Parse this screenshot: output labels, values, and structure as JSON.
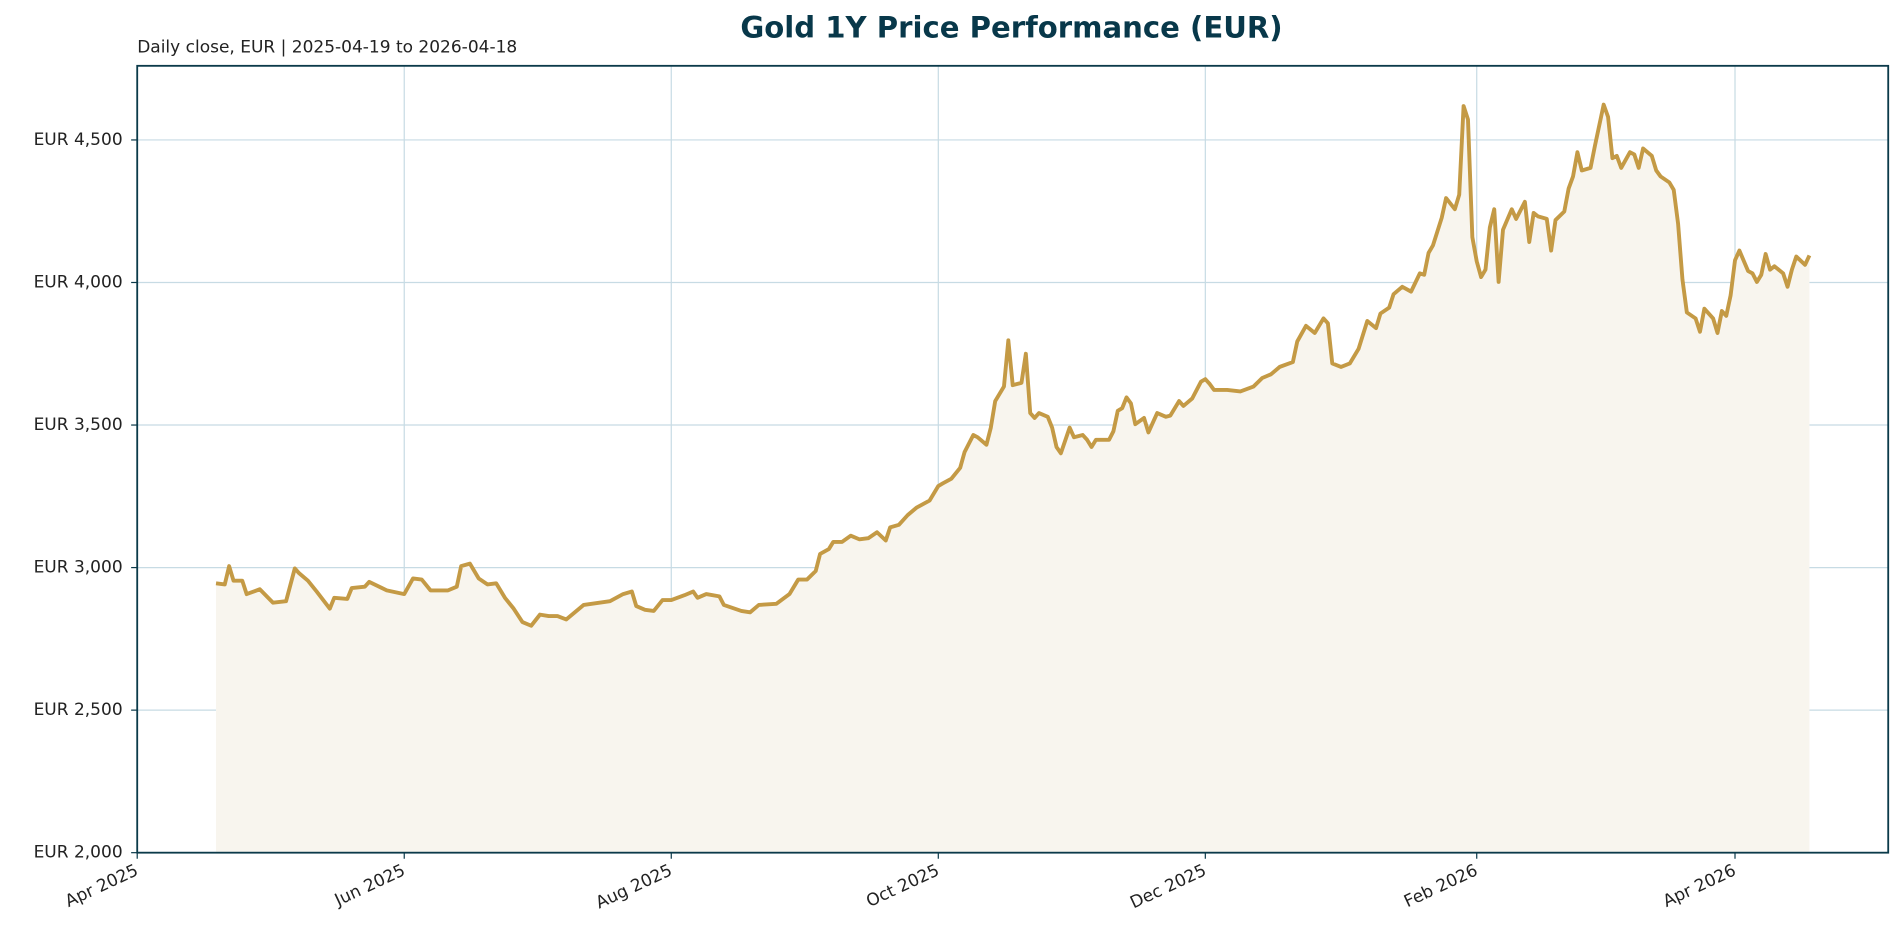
{
  "chart_data": {
    "type": "area-line",
    "title": "Gold 1Y Price Performance (EUR)",
    "subtitle": "Daily close, EUR | 2025-04-19 to 2026-04-18",
    "color": "#c49a45",
    "fill_color": "#f8f5ee",
    "grid": true,
    "xlim": [
      "2025-04-01",
      "2026-05-06"
    ],
    "xticks": [
      {
        "value": "2025-04-01",
        "label": "Apr 2025"
      },
      {
        "value": "2025-06-01",
        "label": "Jun 2025"
      },
      {
        "value": "2025-08-01",
        "label": "Aug 2025"
      },
      {
        "value": "2025-10-01",
        "label": "Oct 2025"
      },
      {
        "value": "2025-12-01",
        "label": "Dec 2025"
      },
      {
        "value": "2026-02-01",
        "label": "Feb 2026"
      },
      {
        "value": "2026-04-01",
        "label": "Apr 2026"
      }
    ],
    "ylim": [
      2000,
      4760
    ],
    "yticks": [
      {
        "value": 2000,
        "label": "EUR 2,000"
      },
      {
        "value": 2500,
        "label": "EUR 2,500"
      },
      {
        "value": 3000,
        "label": "EUR 3,000"
      },
      {
        "value": 3500,
        "label": "EUR 3,500"
      },
      {
        "value": 4000,
        "label": "EUR 4,000"
      },
      {
        "value": 4500,
        "label": "EUR 4,500"
      }
    ],
    "x": [
      "2025-04-19",
      "2025-04-21",
      "2025-04-22",
      "2025-04-23",
      "2025-04-25",
      "2025-04-26",
      "2025-04-29",
      "2025-05-02",
      "2025-05-05",
      "2025-05-07",
      "2025-05-08",
      "2025-05-10",
      "2025-05-12",
      "2025-05-15",
      "2025-05-16",
      "2025-05-19",
      "2025-05-20",
      "2025-05-23",
      "2025-05-24",
      "2025-05-28",
      "2025-06-01",
      "2025-06-03",
      "2025-06-05",
      "2025-06-07",
      "2025-06-11",
      "2025-06-13",
      "2025-06-14",
      "2025-06-16",
      "2025-06-18",
      "2025-06-20",
      "2025-06-22",
      "2025-06-24",
      "2025-06-26",
      "2025-06-28",
      "2025-06-30",
      "2025-07-02",
      "2025-07-04",
      "2025-07-06",
      "2025-07-08",
      "2025-07-12",
      "2025-07-18",
      "2025-07-21",
      "2025-07-23",
      "2025-07-24",
      "2025-07-26",
      "2025-07-28",
      "2025-07-30",
      "2025-08-01",
      "2025-08-04",
      "2025-08-06",
      "2025-08-07",
      "2025-08-09",
      "2025-08-12",
      "2025-08-13",
      "2025-08-17",
      "2025-08-19",
      "2025-08-21",
      "2025-08-25",
      "2025-08-28",
      "2025-08-30",
      "2025-09-01",
      "2025-09-03",
      "2025-09-04",
      "2025-09-06",
      "2025-09-07",
      "2025-09-09",
      "2025-09-11",
      "2025-09-13",
      "2025-09-15",
      "2025-09-17",
      "2025-09-19",
      "2025-09-20",
      "2025-09-22",
      "2025-09-24",
      "2025-09-26",
      "2025-09-29",
      "2025-10-01",
      "2025-10-02",
      "2025-10-04",
      "2025-10-06",
      "2025-10-07",
      "2025-10-09",
      "2025-10-10",
      "2025-10-12",
      "2025-10-13",
      "2025-10-14",
      "2025-10-16",
      "2025-10-17",
      "2025-10-18",
      "2025-10-20",
      "2025-10-21",
      "2025-10-22",
      "2025-10-23",
      "2025-10-24",
      "2025-10-26",
      "2025-10-27",
      "2025-10-28",
      "2025-10-29",
      "2025-10-31",
      "2025-11-01",
      "2025-11-03",
      "2025-11-04",
      "2025-11-05",
      "2025-11-06",
      "2025-11-09",
      "2025-11-10",
      "2025-11-11",
      "2025-11-12",
      "2025-11-13",
      "2025-11-14",
      "2025-11-15",
      "2025-11-17",
      "2025-11-18",
      "2025-11-20",
      "2025-11-22",
      "2025-11-23",
      "2025-11-25",
      "2025-11-26",
      "2025-11-28",
      "2025-11-30",
      "2025-12-01",
      "2025-12-02",
      "2025-12-03",
      "2025-12-06",
      "2025-12-09",
      "2025-12-12",
      "2025-12-14",
      "2025-12-16",
      "2025-12-18",
      "2025-12-21",
      "2025-12-22",
      "2025-12-24",
      "2025-12-26",
      "2025-12-28",
      "2025-12-29",
      "2025-12-30",
      "2026-01-01",
      "2026-01-03",
      "2026-01-05",
      "2026-01-07",
      "2026-01-09",
      "2026-01-10",
      "2026-01-12",
      "2026-01-13",
      "2026-01-15",
      "2026-01-17",
      "2026-01-19",
      "2026-01-20",
      "2026-01-21",
      "2026-01-22",
      "2026-01-24",
      "2026-01-25",
      "2026-01-27",
      "2026-01-28",
      "2026-01-29",
      "2026-01-30",
      "2026-01-31",
      "2026-02-01",
      "2026-02-02",
      "2026-02-03",
      "2026-02-04",
      "2026-02-05",
      "2026-02-06",
      "2026-02-07",
      "2026-02-09",
      "2026-02-10",
      "2026-02-12",
      "2026-02-13",
      "2026-02-14",
      "2026-02-15",
      "2026-02-17",
      "2026-02-18",
      "2026-02-19",
      "2026-02-21",
      "2026-02-22",
      "2026-02-23",
      "2026-02-24",
      "2026-02-25",
      "2026-02-27",
      "2026-02-28",
      "2026-03-02",
      "2026-03-03",
      "2026-03-04",
      "2026-03-05",
      "2026-03-06",
      "2026-03-08",
      "2026-03-09",
      "2026-03-10",
      "2026-03-11",
      "2026-03-13",
      "2026-03-14",
      "2026-03-15",
      "2026-03-17",
      "2026-03-18",
      "2026-03-19",
      "2026-03-20",
      "2026-03-21",
      "2026-03-23",
      "2026-03-24",
      "2026-03-25",
      "2026-03-27",
      "2026-03-28",
      "2026-03-29",
      "2026-03-30",
      "2026-03-31",
      "2026-04-01",
      "2026-04-02",
      "2026-04-04",
      "2026-04-05",
      "2026-04-06",
      "2026-04-07",
      "2026-04-08",
      "2026-04-09",
      "2026-04-10",
      "2026-04-12",
      "2026-04-13",
      "2026-04-14",
      "2026-04-15",
      "2026-04-17",
      "2026-04-18"
    ],
    "values": [
      2945,
      2941,
      3005,
      2954,
      2954,
      2907,
      2924,
      2877,
      2882,
      2997,
      2980,
      2954,
      2916,
      2856,
      2894,
      2890,
      2928,
      2933,
      2950,
      2920,
      2907,
      2962,
      2958,
      2920,
      2920,
      2933,
      3005,
      3014,
      2962,
      2941,
      2945,
      2894,
      2856,
      2809,
      2796,
      2835,
      2830,
      2830,
      2818,
      2869,
      2882,
      2907,
      2916,
      2865,
      2852,
      2848,
      2886,
      2886,
      2903,
      2916,
      2894,
      2907,
      2899,
      2869,
      2848,
      2843,
      2869,
      2873,
      2907,
      2958,
      2958,
      2988,
      3048,
      3065,
      3090,
      3090,
      3112,
      3099,
      3103,
      3124,
      3095,
      3141,
      3150,
      3184,
      3210,
      3235,
      3286,
      3295,
      3312,
      3350,
      3405,
      3465,
      3457,
      3431,
      3491,
      3584,
      3635,
      3797,
      3640,
      3648,
      3750,
      3542,
      3525,
      3542,
      3529,
      3491,
      3423,
      3401,
      3491,
      3457,
      3465,
      3448,
      3423,
      3448,
      3448,
      3478,
      3550,
      3559,
      3597,
      3576,
      3503,
      3525,
      3474,
      3542,
      3529,
      3533,
      3584,
      3567,
      3593,
      3652,
      3661,
      3644,
      3623,
      3623,
      3618,
      3635,
      3665,
      3678,
      3704,
      3721,
      3793,
      3848,
      3823,
      3874,
      3857,
      3716,
      3704,
      3716,
      3767,
      3865,
      3840,
      3891,
      3912,
      3959,
      3985,
      3968,
      4032,
      4027,
      4104,
      4130,
      4227,
      4296,
      4257,
      4308,
      4619,
      4572,
      4159,
      4074,
      4019,
      4045,
      4193,
      4257,
      4002,
      4185,
      4257,
      4223,
      4283,
      4142,
      4244,
      4232,
      4223,
      4112,
      4219,
      4249,
      4330,
      4372,
      4457,
      4393,
      4402,
      4479,
      4624,
      4581,
      4436,
      4444,
      4402,
      4457,
      4449,
      4402,
      4470,
      4444,
      4393,
      4372,
      4351,
      4325,
      4206,
      4010,
      3895,
      3874,
      3827,
      3908,
      3874,
      3823,
      3900,
      3883,
      3955,
      4078,
      4112,
      4040,
      4032,
      4002,
      4027,
      4100,
      4045,
      4057,
      4032,
      3985,
      4045,
      4091,
      4062,
      4095
    ]
  }
}
